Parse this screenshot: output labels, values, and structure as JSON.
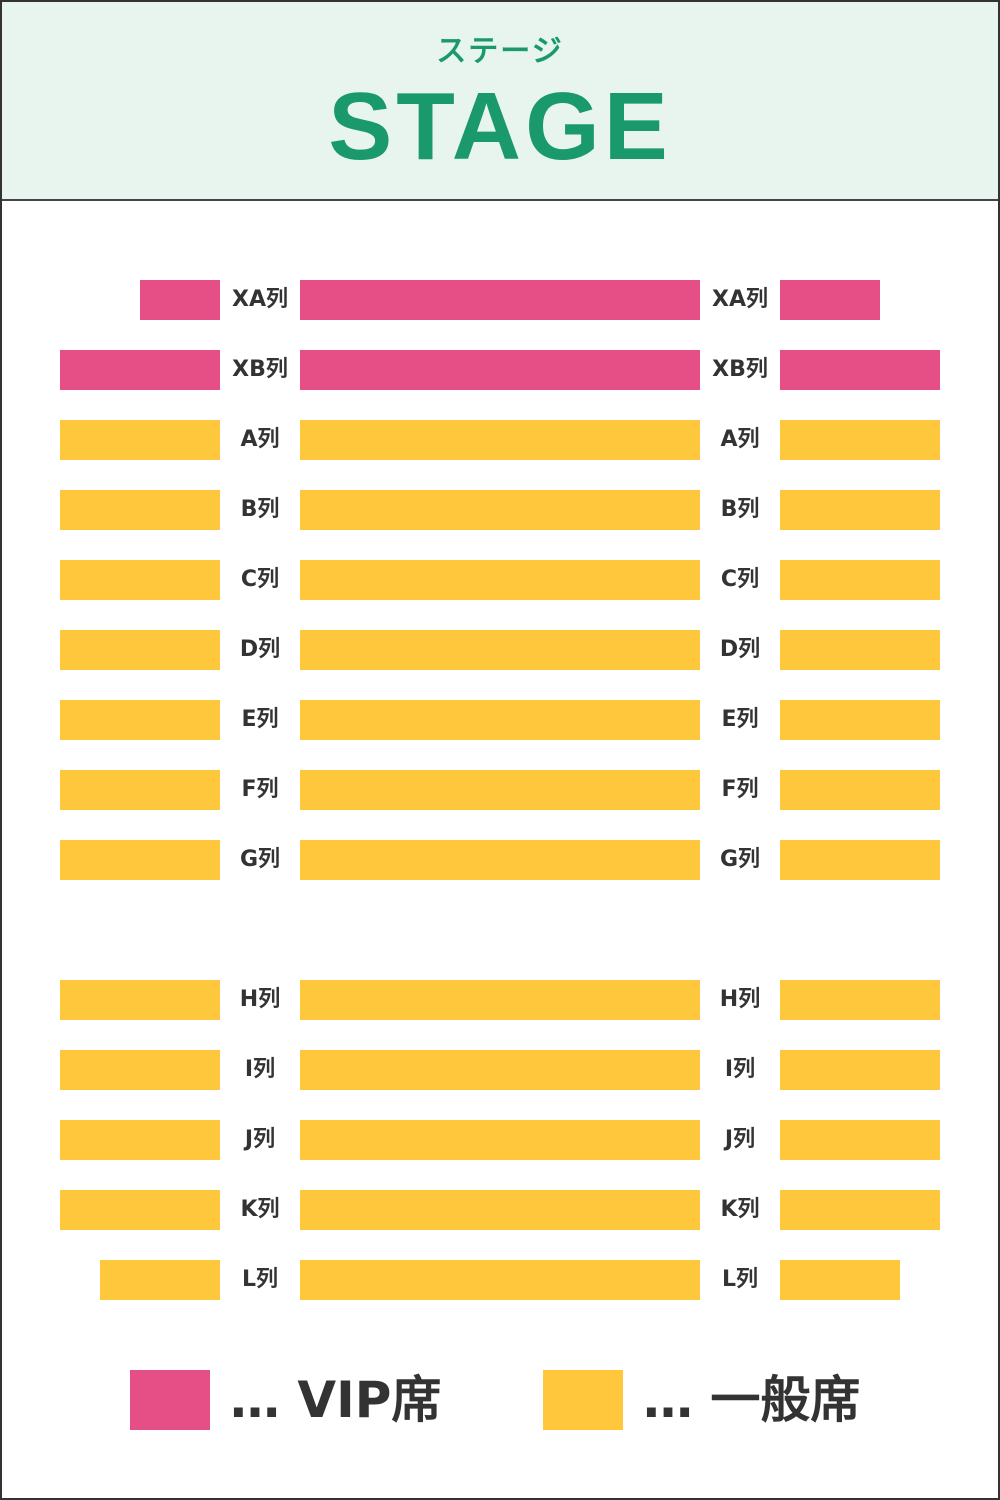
{
  "colors": {
    "vip": "#e64f86",
    "general": "#ffc83c",
    "stage_bg": "#e8f5ef",
    "stage_text": "#1a9a6c",
    "label_text": "#333333"
  },
  "stage": {
    "subtitle": "ステージ",
    "title": "STAGE"
  },
  "block_labels": {
    "front": "front",
    "back": "back"
  },
  "rows": [
    {
      "label": "XA列",
      "type": "vip",
      "side_short": true,
      "block": "front"
    },
    {
      "label": "XB列",
      "type": "vip",
      "side_short": false,
      "block": "front"
    },
    {
      "label": "A列",
      "type": "general",
      "side_short": false,
      "block": "front"
    },
    {
      "label": "B列",
      "type": "general",
      "side_short": false,
      "block": "front"
    },
    {
      "label": "C列",
      "type": "general",
      "side_short": false,
      "block": "front"
    },
    {
      "label": "D列",
      "type": "general",
      "side_short": false,
      "block": "front"
    },
    {
      "label": "E列",
      "type": "general",
      "side_short": false,
      "block": "front"
    },
    {
      "label": "F列",
      "type": "general",
      "side_short": false,
      "block": "front"
    },
    {
      "label": "G列",
      "type": "general",
      "side_short": false,
      "block": "front"
    },
    {
      "label": "H列",
      "type": "general",
      "side_short": false,
      "block": "back"
    },
    {
      "label": "I列",
      "type": "general",
      "side_short": false,
      "block": "back"
    },
    {
      "label": "J列",
      "type": "general",
      "side_short": false,
      "block": "back"
    },
    {
      "label": "K列",
      "type": "general",
      "side_short": false,
      "block": "back"
    },
    {
      "label": "L列",
      "type": "general",
      "side_short": "medium",
      "block": "back"
    }
  ],
  "legend": {
    "vip_label": "… VIP席",
    "general_label": "… 一般席"
  }
}
